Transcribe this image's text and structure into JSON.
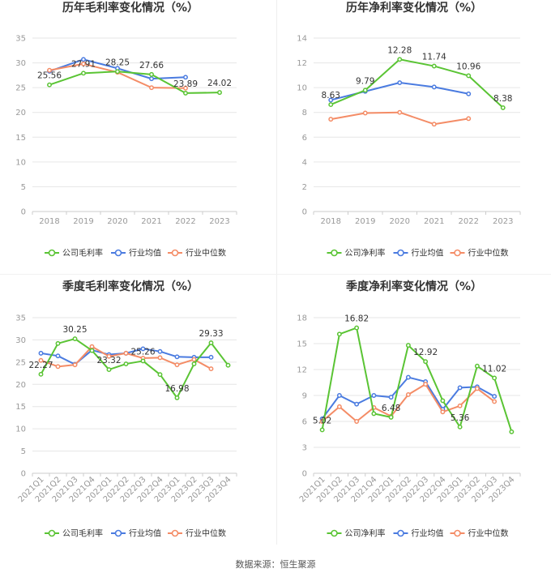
{
  "source_text": "数据来源：恒生聚源",
  "colors": {
    "company": "#5ac434",
    "industry_avg": "#4a7be0",
    "industry_median": "#f48c66",
    "axis_text": "#999999",
    "grid": "#e6e6e6",
    "title": "#333333",
    "label": "#333333"
  },
  "chart_data": [
    {
      "type": "line",
      "title": "历年毛利率变化情况（%）",
      "categories": [
        "2018",
        "2019",
        "2020",
        "2021",
        "2022",
        "2023"
      ],
      "ylim": [
        0,
        35
      ],
      "yticks": [
        0,
        5,
        10,
        15,
        20,
        25,
        30,
        35
      ],
      "grid": true,
      "legend_position": "bottom",
      "series": [
        {
          "name": "公司毛利率",
          "color": "#5ac434",
          "values": [
            25.56,
            27.91,
            28.25,
            27.66,
            23.89,
            24.02
          ],
          "labels": [
            "25.56",
            "27.91",
            "28.25",
            "27.66",
            "23.89",
            "24.02"
          ]
        },
        {
          "name": "行业均值",
          "color": "#4a7be0",
          "values": [
            28.3,
            30.7,
            28.9,
            26.8,
            27.1,
            null
          ]
        },
        {
          "name": "行业中位数",
          "color": "#f48c66",
          "values": [
            28.5,
            29.8,
            28.1,
            25.0,
            24.9,
            null
          ]
        }
      ]
    },
    {
      "type": "line",
      "title": "历年净利率变化情况（%）",
      "categories": [
        "2018",
        "2019",
        "2020",
        "2021",
        "2022",
        "2023"
      ],
      "ylim": [
        0,
        14
      ],
      "yticks": [
        0,
        2,
        4,
        6,
        8,
        10,
        12,
        14
      ],
      "grid": true,
      "legend_position": "bottom",
      "series": [
        {
          "name": "公司净利率",
          "color": "#5ac434",
          "values": [
            8.63,
            9.79,
            12.28,
            11.74,
            10.96,
            8.38
          ],
          "labels": [
            "8.63",
            "9.79",
            "12.28",
            "11.74",
            "10.96",
            "8.38"
          ]
        },
        {
          "name": "行业均值",
          "color": "#4a7be0",
          "values": [
            9.0,
            9.7,
            10.4,
            10.05,
            9.5,
            null
          ]
        },
        {
          "name": "行业中位数",
          "color": "#f48c66",
          "values": [
            7.45,
            7.95,
            8.0,
            7.05,
            7.5,
            null
          ]
        }
      ]
    },
    {
      "type": "line",
      "title": "季度毛利率变化情况（%）",
      "categories": [
        "2021Q1",
        "2021Q2",
        "2021Q3",
        "2021Q4",
        "2022Q1",
        "2022Q2",
        "2022Q3",
        "2022Q4",
        "2023Q1",
        "2023Q2",
        "2023Q3",
        "2023Q4"
      ],
      "ylim": [
        0,
        35
      ],
      "yticks": [
        0,
        5,
        10,
        15,
        20,
        25,
        30,
        35
      ],
      "grid": true,
      "legend_position": "bottom",
      "series": [
        {
          "name": "公司毛利率",
          "color": "#5ac434",
          "values": [
            22.27,
            29.2,
            30.25,
            27.6,
            23.32,
            24.6,
            25.26,
            22.2,
            16.98,
            24.6,
            29.33,
            24.3
          ],
          "labels": [
            "22.27",
            "",
            "30.25",
            "",
            "23.32",
            "",
            "25.26",
            "",
            "16.98",
            "",
            "29.33",
            ""
          ]
        },
        {
          "name": "行业均值",
          "color": "#4a7be0",
          "values": [
            27.0,
            26.4,
            24.5,
            27.7,
            26.7,
            27.0,
            28.0,
            27.4,
            26.2,
            26.1,
            26.1,
            null
          ]
        },
        {
          "name": "行业中位数",
          "color": "#f48c66",
          "values": [
            25.4,
            24.0,
            24.4,
            28.5,
            26.3,
            27.0,
            25.9,
            26.0,
            24.4,
            25.6,
            23.5,
            null
          ]
        }
      ]
    },
    {
      "type": "line",
      "title": "季度净利率变化情况（%）",
      "categories": [
        "2021Q1",
        "2021Q2",
        "2021Q3",
        "2021Q4",
        "2022Q1",
        "2022Q2",
        "2022Q3",
        "2022Q4",
        "2023Q1",
        "2023Q2",
        "2023Q3",
        "2023Q4"
      ],
      "ylim": [
        0,
        18
      ],
      "yticks": [
        0,
        3,
        6,
        9,
        12,
        15,
        18
      ],
      "grid": true,
      "legend_position": "bottom",
      "series": [
        {
          "name": "公司净利率",
          "color": "#5ac434",
          "values": [
            5.02,
            16.1,
            16.82,
            6.9,
            6.48,
            14.8,
            12.92,
            8.4,
            5.36,
            12.4,
            11.02,
            4.8
          ],
          "labels": [
            "5.02",
            "",
            "16.82",
            "",
            "6.48",
            "",
            "12.92",
            "",
            "5.36",
            "",
            "11.02",
            ""
          ]
        },
        {
          "name": "行业均值",
          "color": "#4a7be0",
          "values": [
            6.3,
            9.0,
            8.0,
            9.0,
            8.8,
            11.1,
            10.6,
            7.4,
            9.9,
            10.0,
            8.9,
            null
          ]
        },
        {
          "name": "行业中位数",
          "color": "#f48c66",
          "values": [
            6.0,
            7.7,
            6.0,
            7.6,
            6.6,
            9.1,
            10.3,
            7.1,
            7.8,
            9.8,
            8.3,
            null
          ]
        }
      ]
    }
  ]
}
